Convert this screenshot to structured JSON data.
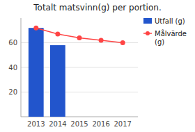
{
  "chart_data": {
    "type": "bar",
    "title": "Totalt matsvinn(g) per portion.",
    "x": [
      2013,
      2014,
      2015,
      2016,
      2017
    ],
    "series": [
      {
        "name": "Utfall (g)",
        "type": "bar",
        "color": "#2255cc",
        "values": [
          72,
          58,
          null,
          null,
          null
        ]
      },
      {
        "name": "Målvärde\n(g)",
        "type": "line",
        "color": "#ff4444",
        "marker": "circle",
        "values": [
          72,
          67,
          64,
          62,
          60
        ]
      }
    ],
    "xlim": [
      2012.3,
      2017.7
    ],
    "xticks": [
      2013,
      2014,
      2015,
      2016,
      2017
    ],
    "ylim": [
      0,
      80
    ],
    "yticks": [
      20,
      40,
      60
    ],
    "grid": true,
    "legend": "upper right"
  }
}
